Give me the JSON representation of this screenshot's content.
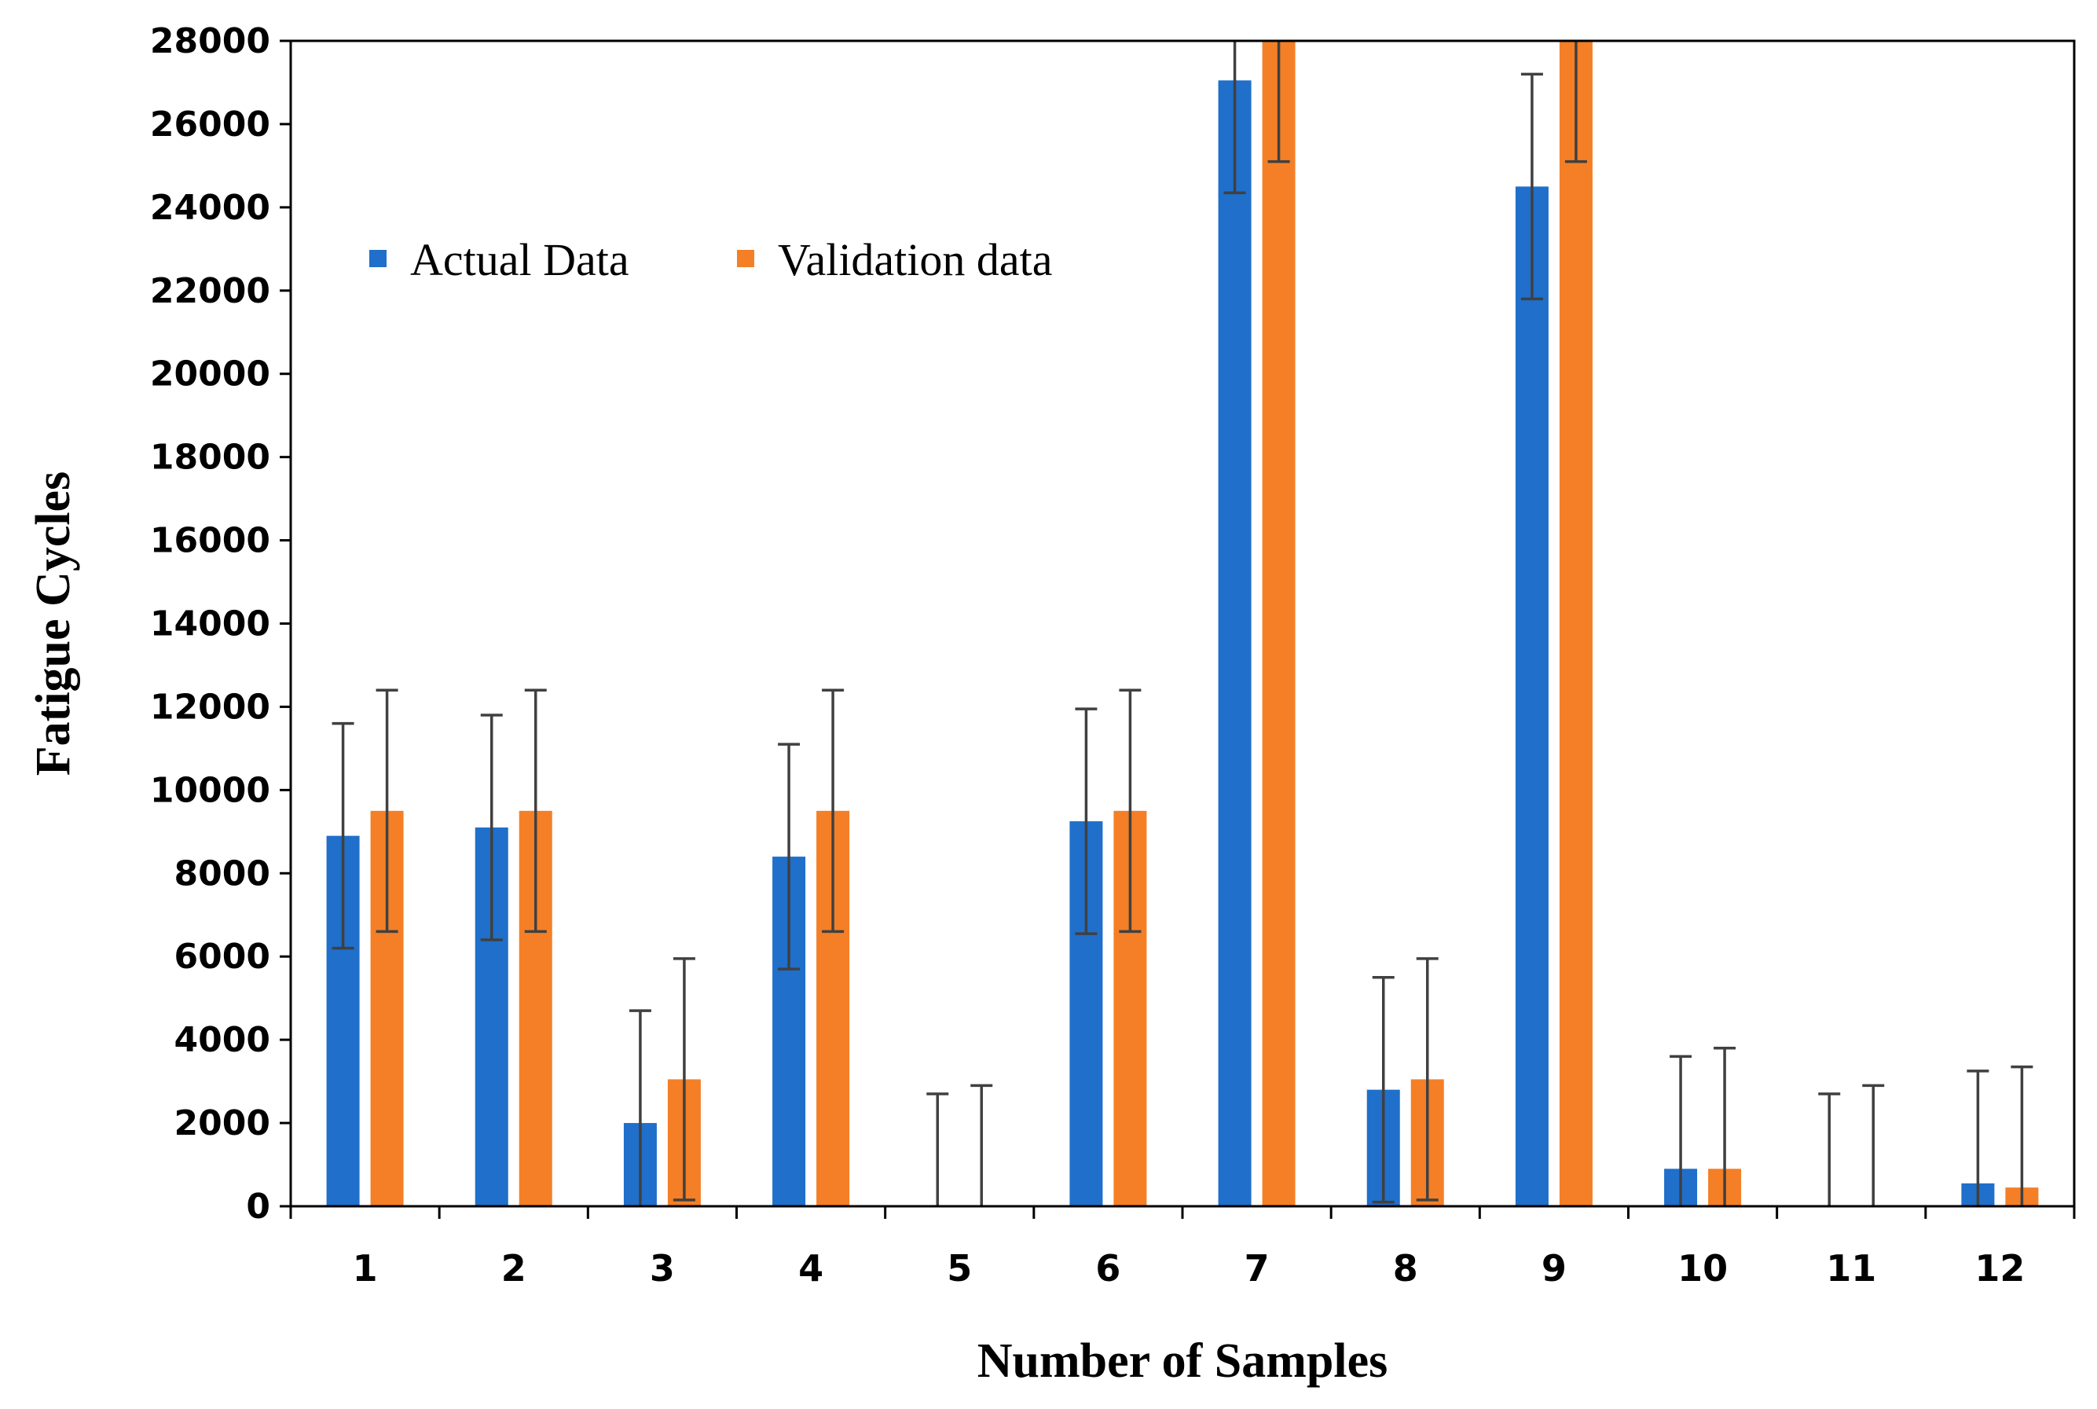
{
  "colors": {
    "actual": "#1f6fcb",
    "validation": "#f47f26",
    "error_bar": "#404040",
    "axis": "#000000"
  },
  "chart_data": {
    "type": "bar",
    "title": "",
    "xlabel": "Number of Samples",
    "ylabel": "Fatigue Cycles",
    "ylim": [
      0,
      28000
    ],
    "yticks": [
      0,
      2000,
      4000,
      6000,
      8000,
      10000,
      12000,
      14000,
      16000,
      18000,
      20000,
      22000,
      24000,
      26000,
      28000
    ],
    "categories": [
      "1",
      "2",
      "3",
      "4",
      "5",
      "6",
      "7",
      "8",
      "9",
      "10",
      "11",
      "12"
    ],
    "legend_position": "upper-left",
    "series": [
      {
        "name": "Actual Data",
        "values": [
          8900,
          9100,
          2000,
          8400,
          0,
          9250,
          27050,
          2800,
          24500,
          900,
          0,
          550
        ],
        "error": [
          2700,
          2700,
          2700,
          2700,
          2700,
          2700,
          2700,
          2700,
          2700,
          2700,
          2700,
          2700
        ]
      },
      {
        "name": "Validation data",
        "values": [
          9500,
          9500,
          3050,
          9500,
          0,
          9500,
          28000,
          3050,
          28000,
          900,
          0,
          450
        ],
        "error": [
          2900,
          2900,
          2900,
          2900,
          2900,
          2900,
          2900,
          2900,
          2900,
          2900,
          2900,
          2900
        ]
      }
    ]
  }
}
